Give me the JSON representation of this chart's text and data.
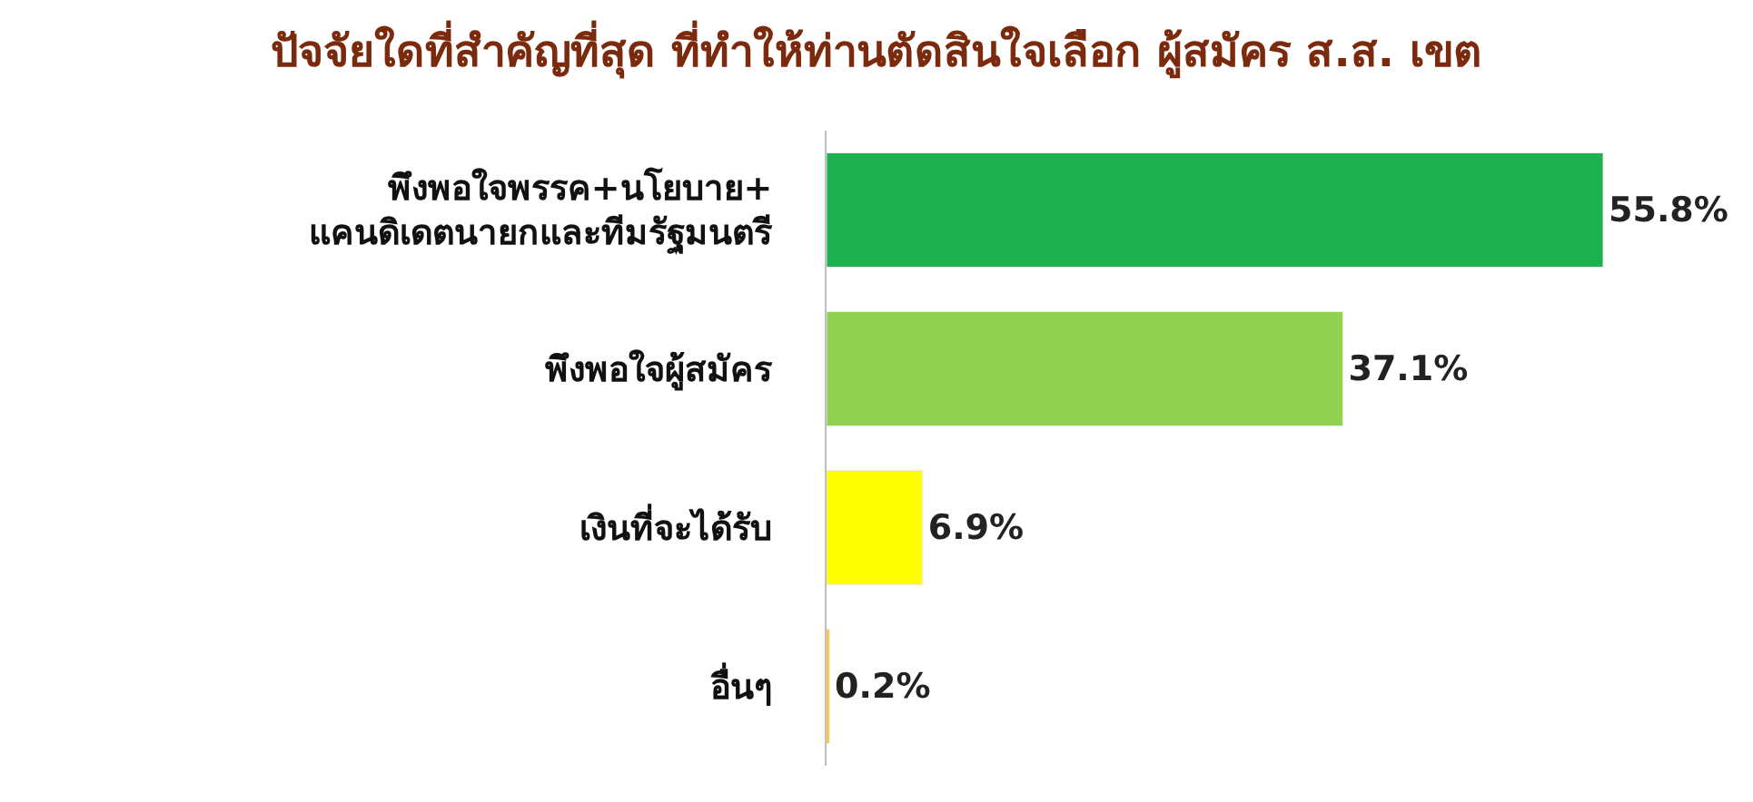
{
  "chart_data": {
    "type": "bar",
    "orientation": "horizontal",
    "title": "ปัจจัยใดที่สำคัญที่สุด ที่ทำให้ท่านตัดสินใจเลือก ผู้สมัคร ส.ส. เขต",
    "categories": [
      "พึงพอใจพรรค+นโยบาย+\nแคนดิเดตนายกและทีมรัฐมนตรี",
      "พึงพอใจผู้สมัคร",
      "เงินที่จะได้รับ",
      "อื่นๆ"
    ],
    "values": [
      55.8,
      37.1,
      6.9,
      0.2
    ],
    "colors": [
      "#1fb04f",
      "#92d050",
      "#ffff00",
      "#ffc000"
    ],
    "value_labels": [
      "55.8%",
      "37.1%",
      "6.9%",
      "0.2%"
    ],
    "legend": false
  }
}
